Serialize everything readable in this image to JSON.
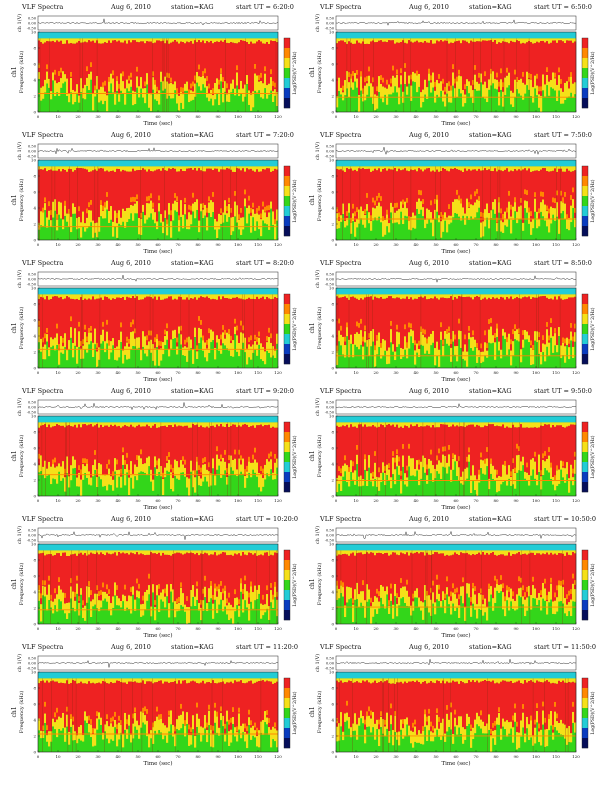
{
  "page": {
    "figure": "VLF spectrogram grid (6 rows x 2 columns)"
  },
  "colors": {
    "red": "#ee2222",
    "orange": "#ff8800",
    "yellow": "#f5e018",
    "green": "#33d61a",
    "cyan": "#22ccd6",
    "blue": "#0a3cbf",
    "navy": "#060e5a"
  },
  "chart_data": [
    {
      "type": "heatmap",
      "title": "VLF Spectra",
      "date": "Aug 6, 2010",
      "station": "station=KAG",
      "start": "start UT = 6:20:0",
      "top_ylabel": "ch 1(V)",
      "top_ticks": [
        "0.50",
        "0.00",
        "-0.50"
      ],
      "ylabel": "Frequency (kHz)",
      "ch_label": "ch1",
      "xlabel": "Time (sec)",
      "xticks": [
        "0",
        "10",
        "20",
        "30",
        "40",
        "50",
        "60",
        "70",
        "80",
        "90",
        "100",
        "110",
        "120"
      ],
      "yticks": [
        "0",
        "2",
        "4",
        "6",
        "8",
        "10"
      ],
      "xlim": [
        0,
        120
      ],
      "ylim": [
        0,
        10
      ],
      "colorbar_label": "Log(PSD)(V^2/Hz)"
    },
    {
      "type": "heatmap",
      "title": "VLF Spectra",
      "date": "Aug 6, 2010",
      "station": "station=KAG",
      "start": "start UT = 6:50:0",
      "top_ylabel": "ch 1(V)",
      "top_ticks": [
        "0.50",
        "0.00",
        "-0.50"
      ],
      "ylabel": "Frequency (kHz)",
      "ch_label": "ch1",
      "xlabel": "Time (sec)",
      "xticks": [
        "0",
        "10",
        "20",
        "30",
        "40",
        "50",
        "60",
        "70",
        "80",
        "90",
        "100",
        "110",
        "120"
      ],
      "yticks": [
        "0",
        "2",
        "4",
        "6",
        "8",
        "10"
      ],
      "xlim": [
        0,
        120
      ],
      "ylim": [
        0,
        10
      ],
      "colorbar_label": "Log(PSD)(V^2/Hz)"
    },
    {
      "type": "heatmap",
      "title": "VLF Spectra",
      "date": "Aug 6, 2010",
      "station": "station=KAG",
      "start": "start UT = 7:20:0",
      "top_ylabel": "ch 1(V)",
      "top_ticks": [
        "0.50",
        "0.00",
        "-0.50"
      ],
      "ylabel": "Frequency (kHz)",
      "ch_label": "ch1",
      "xlabel": "Time (sec)",
      "xticks": [
        "0",
        "10",
        "20",
        "30",
        "40",
        "50",
        "60",
        "70",
        "80",
        "90",
        "100",
        "110",
        "120"
      ],
      "yticks": [
        "0",
        "2",
        "4",
        "6",
        "8",
        "10"
      ],
      "xlim": [
        0,
        120
      ],
      "ylim": [
        0,
        10
      ],
      "colorbar_label": "Log(PSD)(V^2/Hz)"
    },
    {
      "type": "heatmap",
      "title": "VLF Spectra",
      "date": "Aug 6, 2010",
      "station": "station=KAG",
      "start": "start UT = 7:50:0",
      "top_ylabel": "ch 1(V)",
      "top_ticks": [
        "0.50",
        "0.00",
        "-0.50"
      ],
      "ylabel": "Frequency (kHz)",
      "ch_label": "ch1",
      "xlabel": "Time (sec)",
      "xticks": [
        "0",
        "10",
        "20",
        "30",
        "40",
        "50",
        "60",
        "70",
        "80",
        "90",
        "100",
        "110",
        "120"
      ],
      "yticks": [
        "0",
        "2",
        "4",
        "6",
        "8",
        "10"
      ],
      "xlim": [
        0,
        120
      ],
      "ylim": [
        0,
        10
      ],
      "colorbar_label": "Log(PSD)(V^2/Hz)"
    },
    {
      "type": "heatmap",
      "title": "VLF Spectra",
      "date": "Aug 6, 2010",
      "station": "station=KAG",
      "start": "start UT = 8:20:0",
      "top_ylabel": "ch 1(V)",
      "top_ticks": [
        "0.50",
        "0.00",
        "-0.50"
      ],
      "ylabel": "Frequency (kHz)",
      "ch_label": "ch1",
      "xlabel": "Time (sec)",
      "xticks": [
        "0",
        "10",
        "20",
        "30",
        "40",
        "50",
        "60",
        "70",
        "80",
        "90",
        "100",
        "110",
        "120"
      ],
      "yticks": [
        "0",
        "2",
        "4",
        "6",
        "8",
        "10"
      ],
      "xlim": [
        0,
        120
      ],
      "ylim": [
        0,
        10
      ],
      "colorbar_label": "Log(PSD)(V^2/Hz)"
    },
    {
      "type": "heatmap",
      "title": "VLF Spectra",
      "date": "Aug 6, 2010",
      "station": "station=KAG",
      "start": "start UT = 8:50:0",
      "top_ylabel": "ch 1(V)",
      "top_ticks": [
        "0.50",
        "0.00",
        "-0.50"
      ],
      "ylabel": "Frequency (kHz)",
      "ch_label": "ch1",
      "xlabel": "Time (sec)",
      "xticks": [
        "0",
        "10",
        "20",
        "30",
        "40",
        "50",
        "60",
        "70",
        "80",
        "90",
        "100",
        "110",
        "120"
      ],
      "yticks": [
        "0",
        "2",
        "4",
        "6",
        "8",
        "10"
      ],
      "xlim": [
        0,
        120
      ],
      "ylim": [
        0,
        10
      ],
      "colorbar_label": "Log(PSD)(V^2/Hz)"
    },
    {
      "type": "heatmap",
      "title": "VLF Spectra",
      "date": "Aug 6, 2010",
      "station": "station=KAG",
      "start": "start UT = 9:20:0",
      "top_ylabel": "ch 1(V)",
      "top_ticks": [
        "0.50",
        "0.00",
        "-0.50"
      ],
      "ylabel": "Frequency (kHz)",
      "ch_label": "ch1",
      "xlabel": "Time (sec)",
      "xticks": [
        "0",
        "10",
        "20",
        "30",
        "40",
        "50",
        "60",
        "70",
        "80",
        "90",
        "100",
        "110",
        "120"
      ],
      "yticks": [
        "0",
        "2",
        "4",
        "6",
        "8",
        "10"
      ],
      "xlim": [
        0,
        120
      ],
      "ylim": [
        0,
        10
      ],
      "colorbar_label": "Log(PSD)(V^2/Hz)"
    },
    {
      "type": "heatmap",
      "title": "VLF Spectra",
      "date": "Aug 6, 2010",
      "station": "station=KAG",
      "start": "start UT = 9:50:0",
      "top_ylabel": "ch 1(V)",
      "top_ticks": [
        "0.50",
        "0.00",
        "-0.50"
      ],
      "ylabel": "Frequency (kHz)",
      "ch_label": "ch1",
      "xlabel": "Time (sec)",
      "xticks": [
        "0",
        "10",
        "20",
        "30",
        "40",
        "50",
        "60",
        "70",
        "80",
        "90",
        "100",
        "110",
        "120"
      ],
      "yticks": [
        "0",
        "2",
        "4",
        "6",
        "8",
        "10"
      ],
      "xlim": [
        0,
        120
      ],
      "ylim": [
        0,
        10
      ],
      "colorbar_label": "Log(PSD)(V^2/Hz)"
    },
    {
      "type": "heatmap",
      "title": "VLF Spectra",
      "date": "Aug 6, 2010",
      "station": "station=KAG",
      "start": "start UT = 10:20:0",
      "top_ylabel": "ch 1(V)",
      "top_ticks": [
        "0.50",
        "0.00",
        "-0.50"
      ],
      "ylabel": "Frequency (kHz)",
      "ch_label": "ch1",
      "xlabel": "Time (sec)",
      "xticks": [
        "0",
        "10",
        "20",
        "30",
        "40",
        "50",
        "60",
        "70",
        "80",
        "90",
        "100",
        "110",
        "120"
      ],
      "yticks": [
        "0",
        "2",
        "4",
        "6",
        "8",
        "10"
      ],
      "xlim": [
        0,
        120
      ],
      "ylim": [
        0,
        10
      ],
      "colorbar_label": "Log(PSD)(V^2/Hz)"
    },
    {
      "type": "heatmap",
      "title": "VLF Spectra",
      "date": "Aug 6, 2010",
      "station": "station=KAG",
      "start": "start UT = 10:50:0",
      "top_ylabel": "ch 1(V)",
      "top_ticks": [
        "0.50",
        "0.00",
        "-0.50"
      ],
      "ylabel": "Frequency (kHz)",
      "ch_label": "ch1",
      "xlabel": "Time (sec)",
      "xticks": [
        "0",
        "10",
        "20",
        "30",
        "40",
        "50",
        "60",
        "70",
        "80",
        "90",
        "100",
        "110",
        "120"
      ],
      "yticks": [
        "0",
        "2",
        "4",
        "6",
        "8",
        "10"
      ],
      "xlim": [
        0,
        120
      ],
      "ylim": [
        0,
        10
      ],
      "colorbar_label": "Log(PSD)(V^2/Hz)"
    },
    {
      "type": "heatmap",
      "title": "VLF Spectra",
      "date": "Aug 6, 2010",
      "station": "station=KAG",
      "start": "start UT = 11:20:0",
      "top_ylabel": "ch 1(V)",
      "top_ticks": [
        "0.50",
        "0.00",
        "-0.50"
      ],
      "ylabel": "Frequency (kHz)",
      "ch_label": "ch1",
      "xlabel": "Time (sec)",
      "xticks": [
        "0",
        "10",
        "20",
        "30",
        "40",
        "50",
        "60",
        "70",
        "80",
        "90",
        "100",
        "110",
        "120"
      ],
      "yticks": [
        "0",
        "2",
        "4",
        "6",
        "8",
        "10"
      ],
      "xlim": [
        0,
        120
      ],
      "ylim": [
        0,
        10
      ],
      "colorbar_label": "Log(PSD)(V^2/Hz)"
    },
    {
      "type": "heatmap",
      "title": "VLF Spectra",
      "date": "Aug 6, 2010",
      "station": "station=KAG",
      "start": "start UT = 11:50:0",
      "top_ylabel": "ch 1(V)",
      "top_ticks": [
        "0.50",
        "0.00",
        "-0.50"
      ],
      "ylabel": "Frequency (kHz)",
      "ch_label": "ch1",
      "xlabel": "Time (sec)",
      "xticks": [
        "0",
        "10",
        "20",
        "30",
        "40",
        "50",
        "60",
        "70",
        "80",
        "90",
        "100",
        "110",
        "120"
      ],
      "yticks": [
        "0",
        "2",
        "4",
        "6",
        "8",
        "10"
      ],
      "xlim": [
        0,
        120
      ],
      "ylim": [
        0,
        10
      ],
      "colorbar_label": "Log(PSD)(V^2/Hz)"
    }
  ]
}
